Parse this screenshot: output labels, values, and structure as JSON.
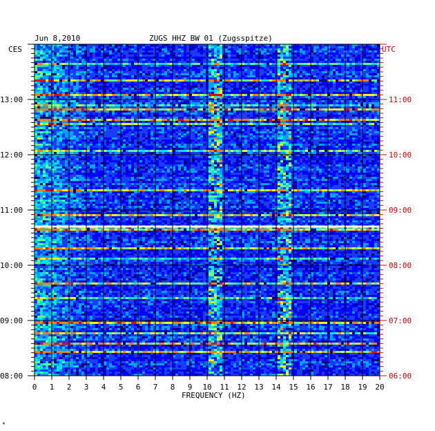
{
  "header": {
    "date": "Jun 8,2010",
    "station": "ZUGS HHZ BW 01 (Zugsspitze)",
    "left_zone": "CES",
    "right_zone": "UTC"
  },
  "chart_data": {
    "type": "heatmap",
    "title": "ZUGS HHZ BW 01 (Zugsspitze)",
    "subtitle": "Jun 8,2010",
    "xlabel": "FREQUENCY (HZ)",
    "xlim": [
      0,
      20
    ],
    "x_ticks": [
      "0",
      "1",
      "2",
      "3",
      "4",
      "5",
      "6",
      "7",
      "8",
      "9",
      "10",
      "11",
      "12",
      "13",
      "14",
      "15",
      "16",
      "17",
      "18",
      "19",
      "20"
    ],
    "ylim_hours": [
      8.0,
      14.0
    ],
    "left_axis": {
      "zone": "CES",
      "ticks": [
        "08:00",
        "09:00",
        "10:00",
        "11:00",
        "12:00",
        "13:00"
      ]
    },
    "right_axis": {
      "zone": "UTC",
      "ticks": [
        "06:00",
        "07:00",
        "08:00",
        "09:00",
        "10:00",
        "11:00"
      ]
    },
    "grid": true,
    "colormap": [
      "#000080",
      "#0000ff",
      "#1a3cff",
      "#00a0ff",
      "#00e0e0",
      "#60ff90",
      "#ffff00",
      "#ff8000",
      "#e00000"
    ],
    "strong_bands_hz": [
      10.5,
      14.5
    ],
    "data_gap_local_time": "10:42",
    "footer_mark": "*"
  }
}
